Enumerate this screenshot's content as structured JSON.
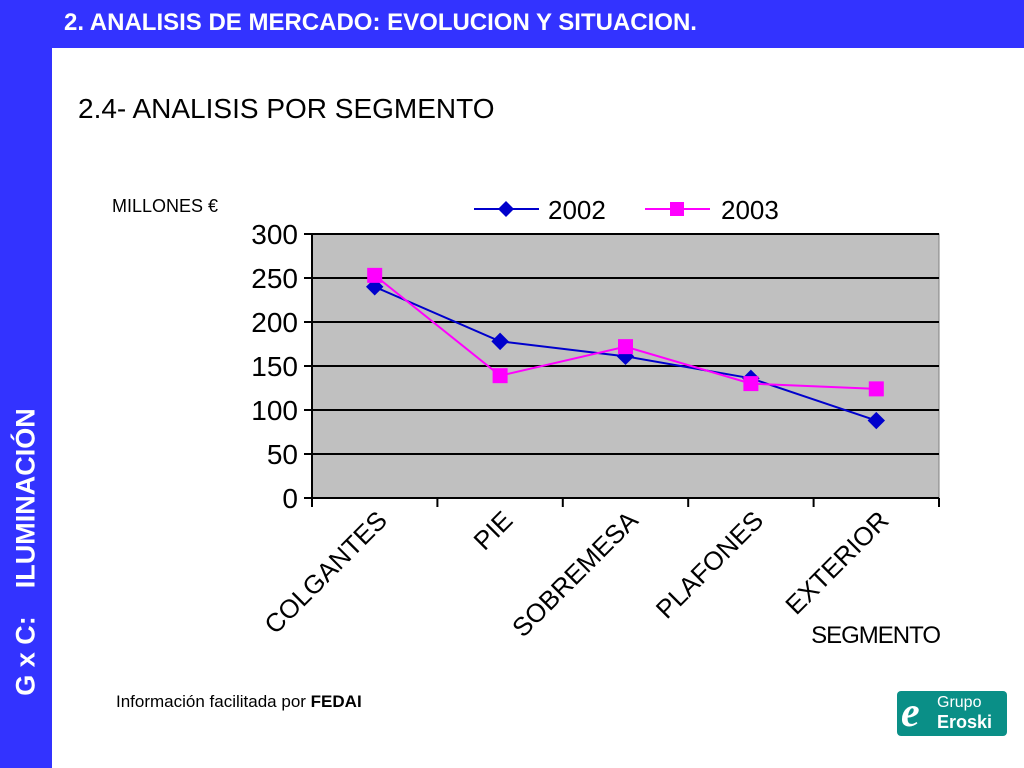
{
  "header": {
    "title": "2. ANALISIS DE MERCADO: EVOLUCION Y SITUACION."
  },
  "sidebar": {
    "prefix": "G x C:",
    "label": "ILUMINACIÓN"
  },
  "section_title": "2.4- ANALISIS POR SEGMENTO",
  "footer": {
    "note": "Información facilitada por",
    "source": "FEDAI"
  },
  "logo": {
    "mark": "e",
    "line1": "Grupo",
    "line2": "Eroski"
  },
  "colors": {
    "header_bg": "#3333ff",
    "plot_bg": "#c0c0c0",
    "series_2002": "#0000cc",
    "series_2003": "#ff00ff",
    "logo_bg": "#0a8f87"
  },
  "chart_data": {
    "type": "line",
    "title": "",
    "ylabel": "MILLONES €",
    "xlabel": "SEGMENTO",
    "categories": [
      "COLGANTES",
      "PIE",
      "SOBREMESA",
      "PLAFONES",
      "EXTERIOR"
    ],
    "series": [
      {
        "name": "2002",
        "values": [
          240,
          178,
          161,
          136,
          88
        ]
      },
      {
        "name": "2003",
        "values": [
          253,
          139,
          172,
          130,
          124
        ]
      }
    ],
    "ylim": [
      0,
      300
    ],
    "yticks": [
      0,
      50,
      100,
      150,
      200,
      250,
      300
    ],
    "grid": true,
    "legend": "top"
  }
}
